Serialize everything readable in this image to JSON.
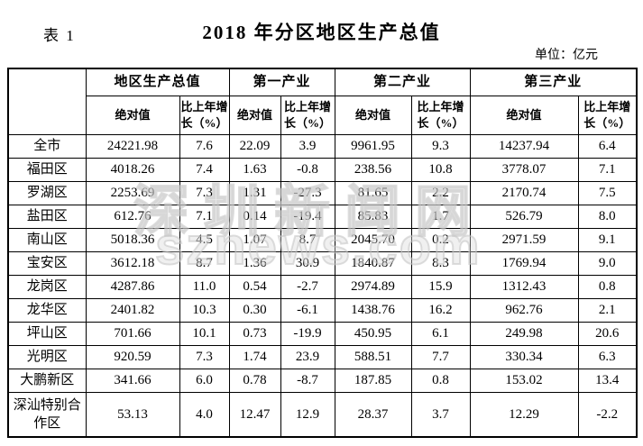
{
  "page": {
    "table_label": "表 1",
    "title": "2018 年分区地区生产总值",
    "unit": "单位：亿元"
  },
  "watermark": {
    "line1": "深圳新闻网",
    "line2": "sznews.com"
  },
  "colors": {
    "text": "#000000",
    "border": "#000000",
    "background": "#ffffff",
    "watermark": "#d7d7d7"
  },
  "table": {
    "corner_label": "",
    "groups": [
      "地区生产总值",
      "第一产业",
      "第二产业",
      "第三产业"
    ],
    "sub_abs": "绝对值",
    "sub_growth": "比上年增长（%）",
    "rows": [
      {
        "district": "全市",
        "values": [
          "24221.98",
          "7.6",
          "22.09",
          "3.9",
          "9961.95",
          "9.3",
          "14237.94",
          "6.4"
        ]
      },
      {
        "district": "福田区",
        "values": [
          "4018.26",
          "7.4",
          "1.63",
          "-0.8",
          "238.56",
          "10.8",
          "3778.07",
          "7.1"
        ]
      },
      {
        "district": "罗湖区",
        "values": [
          "2253.69",
          "7.3",
          "1.31",
          "-27.3",
          "81.65",
          "2.2",
          "2170.74",
          "7.5"
        ]
      },
      {
        "district": "盐田区",
        "values": [
          "612.76",
          "7.1",
          "0.14",
          "-19.4",
          "85.83",
          "1.7",
          "526.79",
          "8.0"
        ]
      },
      {
        "district": "南山区",
        "values": [
          "5018.36",
          "4.5",
          "1.07",
          "8.7",
          "2045.70",
          "0.2",
          "2971.59",
          "9.1"
        ]
      },
      {
        "district": "宝安区",
        "values": [
          "3612.18",
          "8.7",
          "1.36",
          "30.9",
          "1840.87",
          "8.3",
          "1769.94",
          "9.0"
        ]
      },
      {
        "district": "龙岗区",
        "values": [
          "4287.86",
          "11.0",
          "0.54",
          "-2.7",
          "2974.89",
          "15.9",
          "1312.43",
          "0.8"
        ]
      },
      {
        "district": "龙华区",
        "values": [
          "2401.82",
          "10.3",
          "0.30",
          "-6.1",
          "1438.76",
          "16.2",
          "962.76",
          "2.1"
        ]
      },
      {
        "district": "坪山区",
        "values": [
          "701.66",
          "10.1",
          "0.73",
          "-19.9",
          "450.95",
          "6.1",
          "249.98",
          "20.6"
        ]
      },
      {
        "district": "光明区",
        "values": [
          "920.59",
          "7.3",
          "1.74",
          "23.9",
          "588.51",
          "7.7",
          "330.34",
          "6.3"
        ]
      },
      {
        "district": "大鹏新区",
        "values": [
          "341.66",
          "6.0",
          "0.78",
          "-8.7",
          "187.85",
          "0.8",
          "153.02",
          "13.4"
        ]
      },
      {
        "district": "深汕特别合作区",
        "values": [
          "53.13",
          "4.0",
          "12.47",
          "12.9",
          "28.37",
          "3.7",
          "12.29",
          "-2.2"
        ]
      }
    ]
  }
}
